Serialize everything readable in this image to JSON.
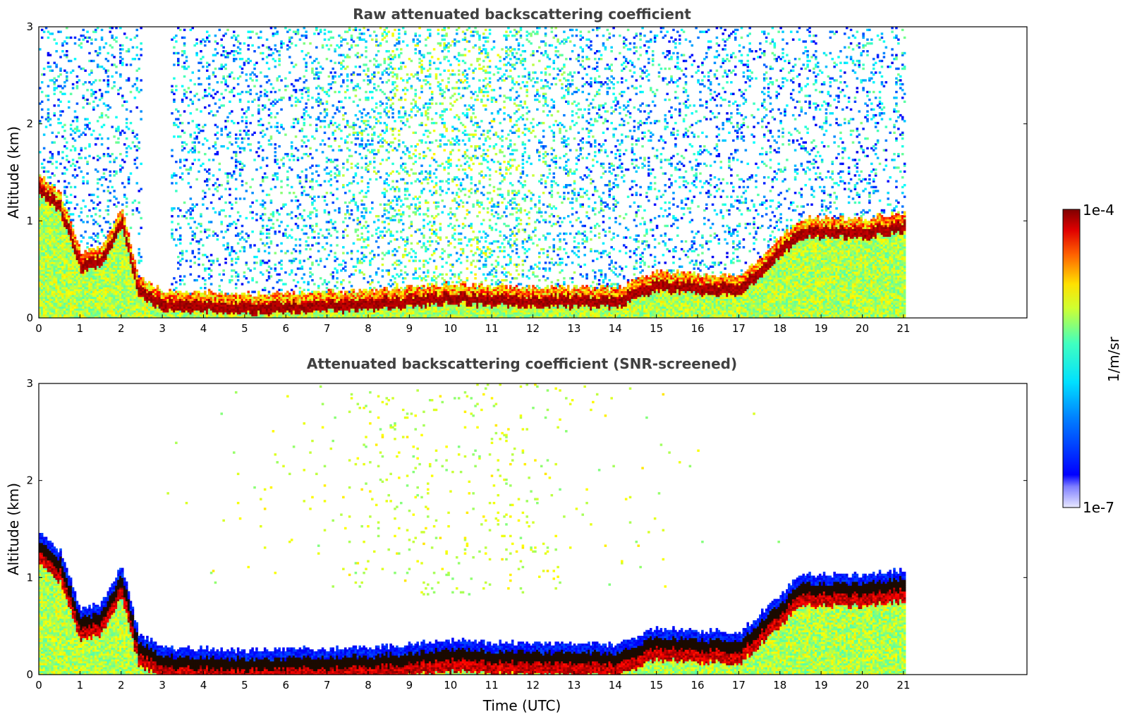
{
  "chart_data": [
    {
      "type": "heatmap",
      "title": "Raw attenuated backscattering coefficient",
      "xlabel": "",
      "ylabel": "Altitude (km)",
      "xlim": [
        0,
        24
      ],
      "ylim": [
        0,
        3
      ],
      "x_ticks": [
        "0",
        "1",
        "2",
        "3",
        "4",
        "5",
        "6",
        "7",
        "8",
        "9",
        "10",
        "11",
        "12",
        "13",
        "14",
        "15",
        "16",
        "17",
        "18",
        "19",
        "20",
        "21"
      ],
      "y_ticks": [
        "0",
        "1",
        "2",
        "3"
      ],
      "data_end_time": 21.05,
      "layers": {
        "boundary_layer_top_km": [
          [
            0,
            1.35
          ],
          [
            0.5,
            1.15
          ],
          [
            1.0,
            0.55
          ],
          [
            1.5,
            0.6
          ],
          [
            2.0,
            1.0
          ],
          [
            2.4,
            0.3
          ],
          [
            3,
            0.15
          ],
          [
            5,
            0.12
          ],
          [
            8,
            0.15
          ],
          [
            10,
            0.22
          ],
          [
            11,
            0.2
          ],
          [
            14,
            0.18
          ],
          [
            15,
            0.35
          ],
          [
            17,
            0.3
          ],
          [
            18.5,
            0.9
          ],
          [
            19.5,
            0.9
          ],
          [
            20,
            0.9
          ],
          [
            21,
            0.95
          ]
        ],
        "screening": "raw"
      }
    },
    {
      "type": "heatmap",
      "title": "Attenuated backscattering coefficient (SNR-screened)",
      "xlabel": "Time (UTC)",
      "ylabel": "Altitude (km)",
      "xlim": [
        0,
        24
      ],
      "ylim": [
        0,
        3
      ],
      "x_ticks": [
        "0",
        "1",
        "2",
        "3",
        "4",
        "5",
        "6",
        "7",
        "8",
        "9",
        "10",
        "11",
        "12",
        "13",
        "14",
        "15",
        "16",
        "17",
        "18",
        "19",
        "20",
        "21"
      ],
      "y_ticks": [
        "0",
        "1",
        "2",
        "3"
      ],
      "data_end_time": 21.05,
      "layers": {
        "boundary_layer_top_km": [
          [
            0,
            1.35
          ],
          [
            0.5,
            1.15
          ],
          [
            1.0,
            0.55
          ],
          [
            1.5,
            0.6
          ],
          [
            2.0,
            1.0
          ],
          [
            2.4,
            0.3
          ],
          [
            3,
            0.15
          ],
          [
            5,
            0.12
          ],
          [
            8,
            0.15
          ],
          [
            10,
            0.22
          ],
          [
            11,
            0.2
          ],
          [
            14,
            0.18
          ],
          [
            15,
            0.35
          ],
          [
            17,
            0.3
          ],
          [
            18.5,
            0.9
          ],
          [
            19.5,
            0.9
          ],
          [
            20,
            0.9
          ],
          [
            21,
            0.95
          ]
        ],
        "screening": "snr"
      }
    }
  ],
  "colorbar": {
    "min_label": "1e-7",
    "max_label": "1e-4",
    "label": "1/m/sr",
    "colormap": "jet",
    "scale": "log"
  }
}
